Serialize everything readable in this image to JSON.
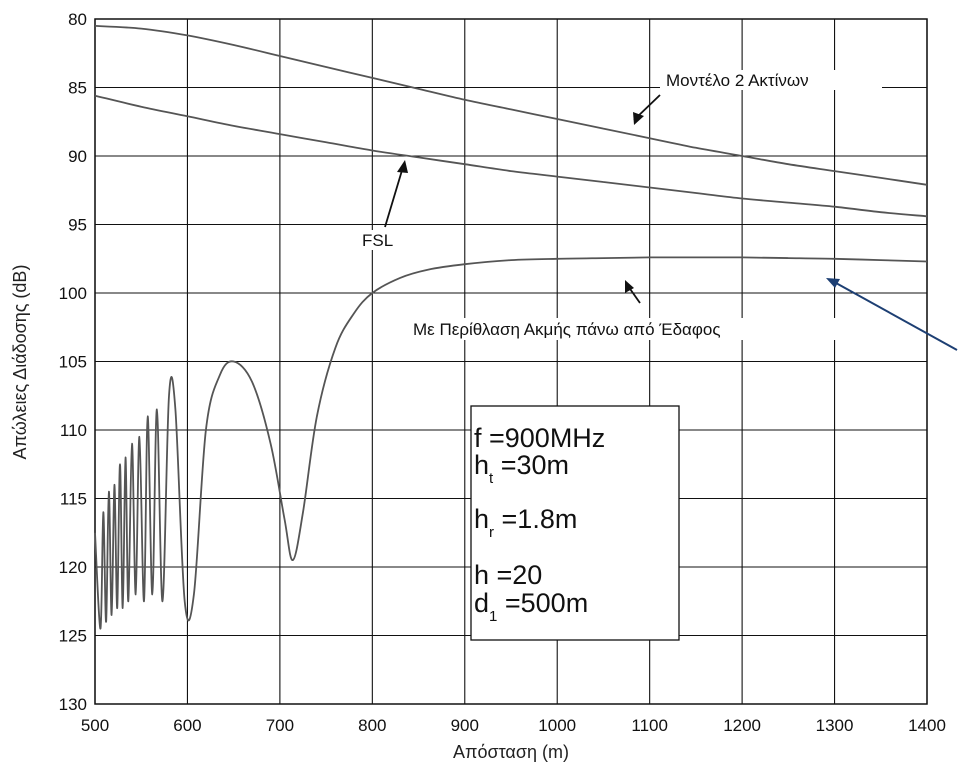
{
  "chart_data": {
    "type": "line",
    "xlabel": "Απόσταση (m)",
    "ylabel": "Απώλειες Διάδοσης (dB)",
    "xlim": [
      500,
      1400
    ],
    "ylim": [
      80,
      130
    ],
    "y_reversed": true,
    "grid": true,
    "x_ticks": [
      "500",
      "600",
      "700",
      "800",
      "900",
      "1000",
      "1100",
      "1200",
      "1300",
      "1400"
    ],
    "y_ticks": [
      "80",
      "85",
      "90",
      "95",
      "100",
      "105",
      "110",
      "115",
      "120",
      "125",
      "130"
    ],
    "series": [
      {
        "name": "Μοντέλο 2 Ακτίνων",
        "x": [
          500,
          550,
          600,
          650,
          700,
          750,
          800,
          850,
          900,
          950,
          1000,
          1050,
          1100,
          1150,
          1200,
          1250,
          1300,
          1350,
          1400
        ],
        "y": [
          80.5,
          80.7,
          81.2,
          81.9,
          82.7,
          83.5,
          84.3,
          85.1,
          85.9,
          86.6,
          87.3,
          88.0,
          88.7,
          89.4,
          90.0,
          90.6,
          91.1,
          91.6,
          92.1
        ]
      },
      {
        "name": "FSL",
        "x": [
          500,
          550,
          600,
          650,
          700,
          750,
          800,
          850,
          900,
          950,
          1000,
          1050,
          1100,
          1150,
          1200,
          1250,
          1300,
          1350,
          1400
        ],
        "y": [
          85.6,
          86.4,
          87.1,
          87.8,
          88.4,
          89.0,
          89.6,
          90.1,
          90.6,
          91.1,
          91.5,
          91.9,
          92.3,
          92.7,
          93.1,
          93.4,
          93.7,
          94.1,
          94.4
        ]
      },
      {
        "name": "Με Περίθλαση Ακμής πάνω από Έδαφος",
        "x": [
          500,
          506,
          509,
          512,
          515,
          518,
          521,
          524,
          527,
          530,
          533,
          536,
          540,
          544,
          548,
          553,
          557,
          562,
          567,
          573,
          580,
          587,
          597,
          607,
          620,
          635,
          650,
          670,
          690,
          705,
          714,
          725,
          740,
          760,
          780,
          800,
          830,
          860,
          900,
          950,
          1000,
          1050,
          1100,
          1150,
          1200,
          1250,
          1300,
          1350,
          1400
        ],
        "y": [
          117.5,
          124.5,
          116.0,
          124.0,
          114.5,
          123.5,
          114.0,
          123.0,
          112.5,
          123.0,
          112.0,
          122.5,
          111.0,
          122.0,
          110.5,
          122.5,
          109.0,
          122.0,
          108.5,
          122.5,
          107.5,
          108.5,
          122.5,
          122.0,
          110.0,
          106.0,
          105.0,
          106.5,
          111.0,
          116.5,
          119.5,
          116.0,
          109.0,
          104.0,
          101.5,
          100.0,
          98.9,
          98.3,
          97.9,
          97.6,
          97.5,
          97.45,
          97.4,
          97.4,
          97.4,
          97.45,
          97.5,
          97.6,
          97.7
        ]
      }
    ],
    "annotations": [
      {
        "text": "Μοντέλο 2 Ακτίνων",
        "target_x": 1085,
        "target_y": 87.5
      },
      {
        "text": "FSL",
        "target_x": 832,
        "target_y": 90.0
      },
      {
        "text": "Με Περίθλαση Ακμής πάνω από Έδαφος",
        "target_x": 1080,
        "target_y": 99.5
      }
    ],
    "param_box": {
      "f": "f =900MHz",
      "ht_main": "h",
      "ht_sub": "t",
      "ht_val": " =30m",
      "hr_main": "h",
      "hr_sub": "r",
      "hr_val": " =1.8m",
      "h": "h =20",
      "d1_main": "d",
      "d1_sub": "1",
      "d1_val": " =500m"
    }
  }
}
